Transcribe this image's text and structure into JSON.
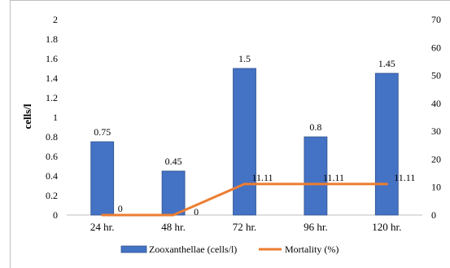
{
  "chart_data": {
    "type": "bar+line",
    "categories": [
      "24 hr.",
      "48 hr.",
      "72 hr.",
      "96 hr.",
      "120 hr."
    ],
    "series": [
      {
        "name": "Zooxanthellae (cells/l)",
        "kind": "bar",
        "axis": "left",
        "color": "#4472c4",
        "values": [
          0.75,
          0.45,
          1.5,
          0.8,
          1.45
        ],
        "labels": [
          "0.75",
          "0.45",
          "1.5",
          "0.8",
          "1.45"
        ]
      },
      {
        "name": "Mortality (%)",
        "kind": "line",
        "axis": "right",
        "color": "#ed7d31",
        "values": [
          0,
          0,
          11.11,
          11.11,
          11.11
        ],
        "labels": [
          "0",
          "0",
          "11.11",
          "11.11",
          "11.11"
        ]
      }
    ],
    "ylabel": "cells/l",
    "ylim": [
      0,
      2
    ],
    "y_ticks": [
      "0",
      "0.2",
      "0.4",
      "0.6",
      "0.8",
      "1",
      "1.2",
      "1.4",
      "1.6",
      "1.8",
      "2"
    ],
    "y2lim": [
      0,
      70
    ],
    "y2_ticks": [
      "0",
      "10",
      "20",
      "30",
      "40",
      "50",
      "60",
      "70"
    ],
    "legend_position": "bottom",
    "grid": false
  }
}
